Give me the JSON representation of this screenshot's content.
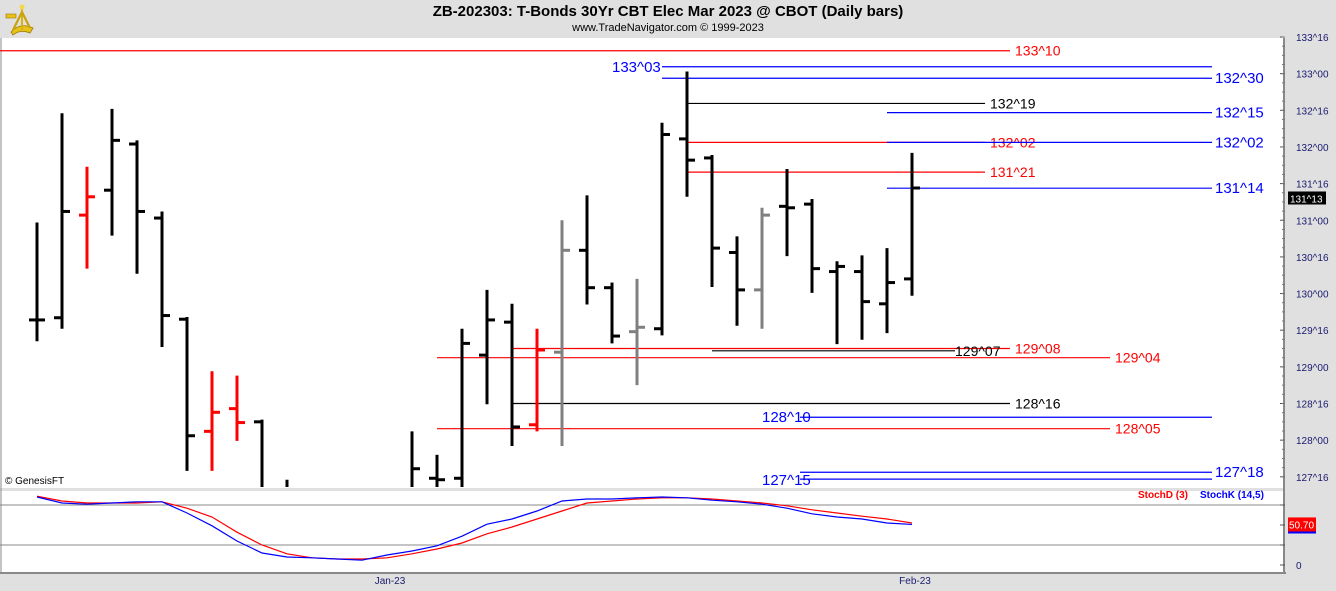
{
  "header": {
    "title": "ZB-202303:  T-Bonds 30Yr CBT Elec Mar 2023 @ CBOT  (Daily bars)",
    "subtitle": "www.TradeNavigator.com © 1999-2023",
    "logo": "sextant-logo"
  },
  "copyright": "© GenesisFT",
  "colors": {
    "up_bar": "#000000",
    "highlight_red": "#ff0000",
    "highlight_gray": "#808080",
    "stochD": "#ff0000",
    "stochK": "#0000ff",
    "axis_text": "#1a1a6e"
  },
  "chart_data": [
    {
      "type": "ohlc",
      "title": "ZB-202303:  T-Bonds 30Yr CBT Elec Mar 2023 @ CBOT  (Daily bars)",
      "price_format": "points^32nds",
      "ylim": [
        127.37,
        133.6
      ],
      "y_ticks": [
        "133^16",
        "133^00",
        "132^16",
        "132^00",
        "131^16",
        "131^00",
        "130^16",
        "130^00",
        "129^16",
        "129^00",
        "128^16",
        "128^00",
        "127^16"
      ],
      "y_tick_values": [
        133.5,
        133,
        132.5,
        132,
        131.5,
        131,
        130.5,
        130,
        129.5,
        129,
        128.5,
        128,
        127.5
      ],
      "x_ticks": [
        {
          "label": "Jan-23",
          "bar": 14
        },
        {
          "label": "Feb-23",
          "bar": 35
        }
      ],
      "last_price_label": "131^13",
      "last_price": 131.406,
      "bars": [
        {
          "o": 129.64,
          "h": 130.97,
          "l": 129.35,
          "c": 129.64,
          "color": "black"
        },
        {
          "o": 129.67,
          "h": 132.46,
          "l": 129.52,
          "c": 131.12,
          "color": "black"
        },
        {
          "o": 131.07,
          "h": 131.73,
          "l": 130.34,
          "c": 131.32,
          "color": "red"
        },
        {
          "o": 131.41,
          "h": 132.52,
          "l": 130.79,
          "c": 132.09,
          "color": "black"
        },
        {
          "o": 132.04,
          "h": 132.09,
          "l": 130.27,
          "c": 131.12,
          "color": "black"
        },
        {
          "o": 131.03,
          "h": 131.12,
          "l": 129.27,
          "c": 129.7,
          "color": "black"
        },
        {
          "o": 129.65,
          "h": 129.68,
          "l": 127.58,
          "c": 128.06,
          "color": "black"
        },
        {
          "o": 128.12,
          "h": 128.94,
          "l": 127.58,
          "c": 128.38,
          "color": "red"
        },
        {
          "o": 128.43,
          "h": 128.88,
          "l": 127.99,
          "c": 128.24,
          "color": "red"
        },
        {
          "o": 128.25,
          "h": 128.28,
          "l": null,
          "c": null,
          "color": "black"
        },
        {
          "o": null,
          "h": 127.46,
          "l": null,
          "c": null,
          "color": "black"
        },
        null,
        null,
        null,
        null,
        {
          "o": null,
          "h": 128.12,
          "l": null,
          "c": 127.61,
          "color": "black"
        },
        {
          "o": 127.48,
          "h": 127.8,
          "l": null,
          "c": 127.46,
          "color": "black"
        },
        {
          "o": 127.48,
          "h": 129.52,
          "l": null,
          "c": 129.32,
          "color": "black"
        },
        {
          "o": 129.16,
          "h": 130.05,
          "l": 128.49,
          "c": 129.64,
          "color": "black"
        },
        {
          "o": 129.61,
          "h": 129.86,
          "l": 127.92,
          "c": 128.18,
          "color": "black"
        },
        {
          "o": 128.21,
          "h": 129.52,
          "l": 128.12,
          "c": 129.23,
          "color": "red"
        },
        {
          "o": 129.2,
          "h": 131.0,
          "l": 127.92,
          "c": 130.59,
          "color": "gray"
        },
        {
          "o": 130.59,
          "h": 131.34,
          "l": 129.85,
          "c": 130.08,
          "color": "black"
        },
        {
          "o": 130.08,
          "h": 130.15,
          "l": 129.32,
          "c": 129.42,
          "color": "black"
        },
        {
          "o": 129.48,
          "h": 130.2,
          "l": 128.75,
          "c": 129.54,
          "color": "gray"
        },
        {
          "o": 129.52,
          "h": 132.33,
          "l": 129.43,
          "c": 132.17,
          "color": "black"
        },
        {
          "o": 132.11,
          "h": 133.03,
          "l": 131.32,
          "c": 131.82,
          "color": "black"
        },
        {
          "o": 131.85,
          "h": 131.89,
          "l": 130.09,
          "c": 130.62,
          "color": "black"
        },
        {
          "o": 130.56,
          "h": 130.78,
          "l": 129.56,
          "c": 130.05,
          "color": "black"
        },
        {
          "o": 130.05,
          "h": 131.17,
          "l": 129.52,
          "c": 131.07,
          "color": "gray"
        },
        {
          "o": 131.19,
          "h": 131.7,
          "l": 130.51,
          "c": 131.17,
          "color": "black"
        },
        {
          "o": 131.22,
          "h": 131.29,
          "l": 130.01,
          "c": 130.34,
          "color": "black"
        },
        {
          "o": 130.3,
          "h": 130.44,
          "l": 129.31,
          "c": 130.37,
          "color": "black"
        },
        {
          "o": 130.3,
          "h": 130.52,
          "l": 129.37,
          "c": 129.89,
          "color": "black"
        },
        {
          "o": 129.86,
          "h": 130.62,
          "l": 129.46,
          "c": 130.15,
          "color": "black"
        },
        {
          "o": 130.2,
          "h": 131.92,
          "l": 129.97,
          "c": 131.44,
          "color": "black"
        }
      ],
      "levels": [
        {
          "label": "133^10",
          "price": 133.3125,
          "color": "#ff0000"
        },
        {
          "label": "133^03",
          "price": 133.09375,
          "color": "#0000ff"
        },
        {
          "label": "132^30",
          "price": 132.9375,
          "color": "#0000ff"
        },
        {
          "label": "132^19",
          "price": 132.59375,
          "color": "#000000"
        },
        {
          "label": "132^15",
          "price": 132.46875,
          "color": "#0000ff"
        },
        {
          "label": "132^02",
          "price": 132.0625,
          "color": "#ff0000"
        },
        {
          "label": "132^02",
          "price": 132.0625,
          "color": "#0000ff"
        },
        {
          "label": "131^21",
          "price": 131.65625,
          "color": "#ff0000"
        },
        {
          "label": "131^14",
          "price": 131.4375,
          "color": "#0000ff"
        },
        {
          "label": "129^08",
          "price": 129.25,
          "color": "#ff0000"
        },
        {
          "label": "129^07",
          "price": 129.21875,
          "color": "#000000"
        },
        {
          "label": "129^04",
          "price": 129.125,
          "color": "#ff0000"
        },
        {
          "label": "128^16",
          "price": 128.5,
          "color": "#000000"
        },
        {
          "label": "128^10",
          "price": 128.3125,
          "color": "#0000ff"
        },
        {
          "label": "128^05",
          "price": 128.15625,
          "color": "#ff0000"
        },
        {
          "label": "127^18",
          "price": 127.5625,
          "color": "#0000ff"
        },
        {
          "label": "127^15",
          "price": 127.46875,
          "color": "#0000ff"
        }
      ]
    },
    {
      "type": "line",
      "ylim": [
        0,
        100
      ],
      "y_ticks": [
        "0"
      ],
      "reference_lines": [
        25,
        75
      ],
      "last_value_label": "50.70",
      "series": [
        {
          "name": "StochD (3)",
          "color": "#ff0000",
          "values": [
            86,
            80,
            77.5,
            77.5,
            77.5,
            79,
            71,
            60,
            41,
            25,
            14,
            9,
            7.5,
            7.5,
            9,
            14,
            20,
            27.5,
            39,
            47.5,
            57.5,
            67.5,
            77.5,
            80,
            82.5,
            84,
            84,
            82.5,
            80,
            77.5,
            74,
            69,
            65,
            61,
            57.5,
            52.5
          ]
        },
        {
          "name": "StochK (14,5)",
          "color": "#0000ff",
          "values": [
            85,
            77.5,
            76,
            77.5,
            79,
            79,
            65,
            49,
            30,
            15,
            10,
            9,
            7.5,
            6,
            12.5,
            17.5,
            24,
            36,
            51,
            57.5,
            67.5,
            80,
            82.5,
            82.5,
            84,
            85,
            84,
            81,
            79,
            76,
            71,
            64,
            60,
            57.5,
            52.5,
            50.7
          ]
        }
      ]
    }
  ]
}
